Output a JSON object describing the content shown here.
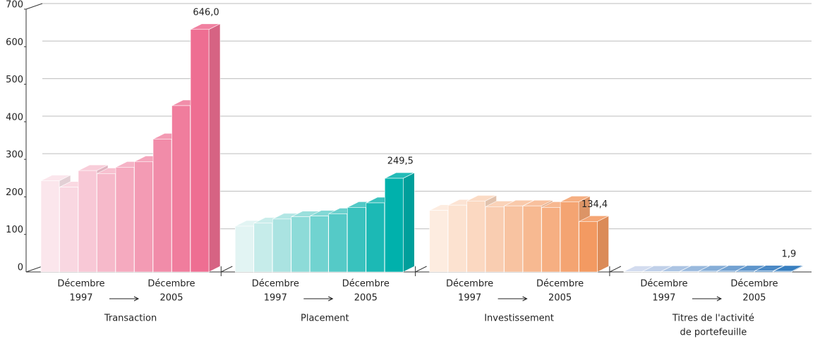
{
  "chart_data": {
    "type": "bar3d",
    "period_start": [
      "Décembre",
      "1997"
    ],
    "period_end": [
      "Décembre",
      "2005"
    ],
    "ylim": [
      0,
      700
    ],
    "yticks": [
      0,
      100,
      200,
      300,
      400,
      500,
      600,
      700
    ],
    "grid": true,
    "groups": [
      {
        "name": [
          "Transaction"
        ],
        "colors": [
          "#fbe6ec",
          "#ee6e92"
        ],
        "values": [
          243,
          226,
          270,
          262,
          279,
          294,
          354,
          443,
          646.0
        ],
        "value_labels": [
          null,
          null,
          null,
          null,
          null,
          null,
          null,
          null,
          "646,0"
        ]
      },
      {
        "name": [
          "Placement"
        ],
        "colors": [
          "#e2f4f3",
          "#00b1ac"
        ],
        "values": [
          122,
          130,
          141,
          147,
          149,
          155,
          172,
          184,
          249.5
        ],
        "value_labels": [
          null,
          null,
          null,
          null,
          null,
          null,
          null,
          null,
          "249,5"
        ]
      },
      {
        "name": [
          "Investissement"
        ],
        "colors": [
          "#fdece0",
          "#f39a62"
        ],
        "values": [
          164,
          178,
          189,
          174,
          176,
          176,
          172,
          187,
          134.4
        ],
        "value_labels": [
          null,
          null,
          null,
          null,
          null,
          null,
          null,
          null,
          "134,4"
        ]
      },
      {
        "name": [
          "Titres de l'activité",
          "de portefeuille"
        ],
        "colors": [
          "#d3dcef",
          "#1c6db6"
        ],
        "values": [
          1.0,
          1.2,
          1.3,
          1.5,
          2.0,
          2.2,
          2.3,
          2.5,
          1.9
        ],
        "value_labels": [
          null,
          null,
          null,
          null,
          null,
          null,
          null,
          null,
          "1,9"
        ]
      }
    ]
  }
}
